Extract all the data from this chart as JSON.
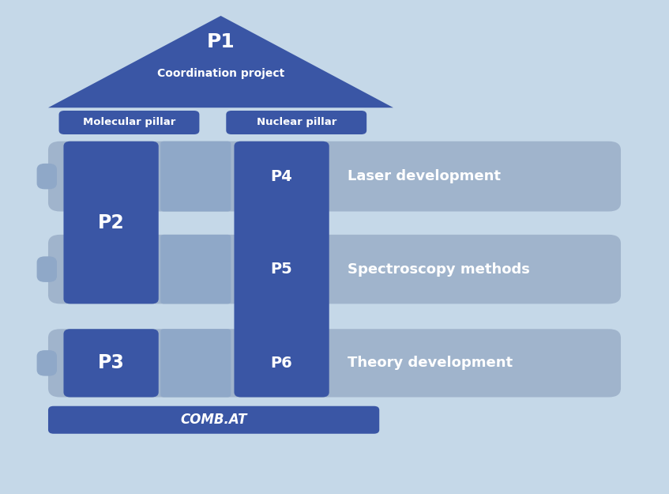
{
  "bg_color": "#c5d8e8",
  "dark_blue": "#3a56a5",
  "light_blue_row": "#a0b4cc",
  "light_blue_mol": "#8fa8c8",
  "pillar_label_bg": "#3a56a5",
  "roof_color": "#3a56a5",
  "base_color": "#3a56a5",
  "tab_color": "#8fa8c8",
  "p1_label": "P1",
  "p1_sub": "Coordination project",
  "mol_pillar": "Molecular pillar",
  "nuc_pillar": "Nuclear pillar",
  "p2_label": "P2",
  "p3_label": "P3",
  "p4_label": "P4",
  "p5_label": "P5",
  "p6_label": "P6",
  "row1_text": "Laser development",
  "row2_text": "Spectroscopy methods",
  "row3_text": "Theory development",
  "base_text": "COMB.AT",
  "xlim": [
    0,
    10
  ],
  "ylim": [
    0,
    10
  ]
}
